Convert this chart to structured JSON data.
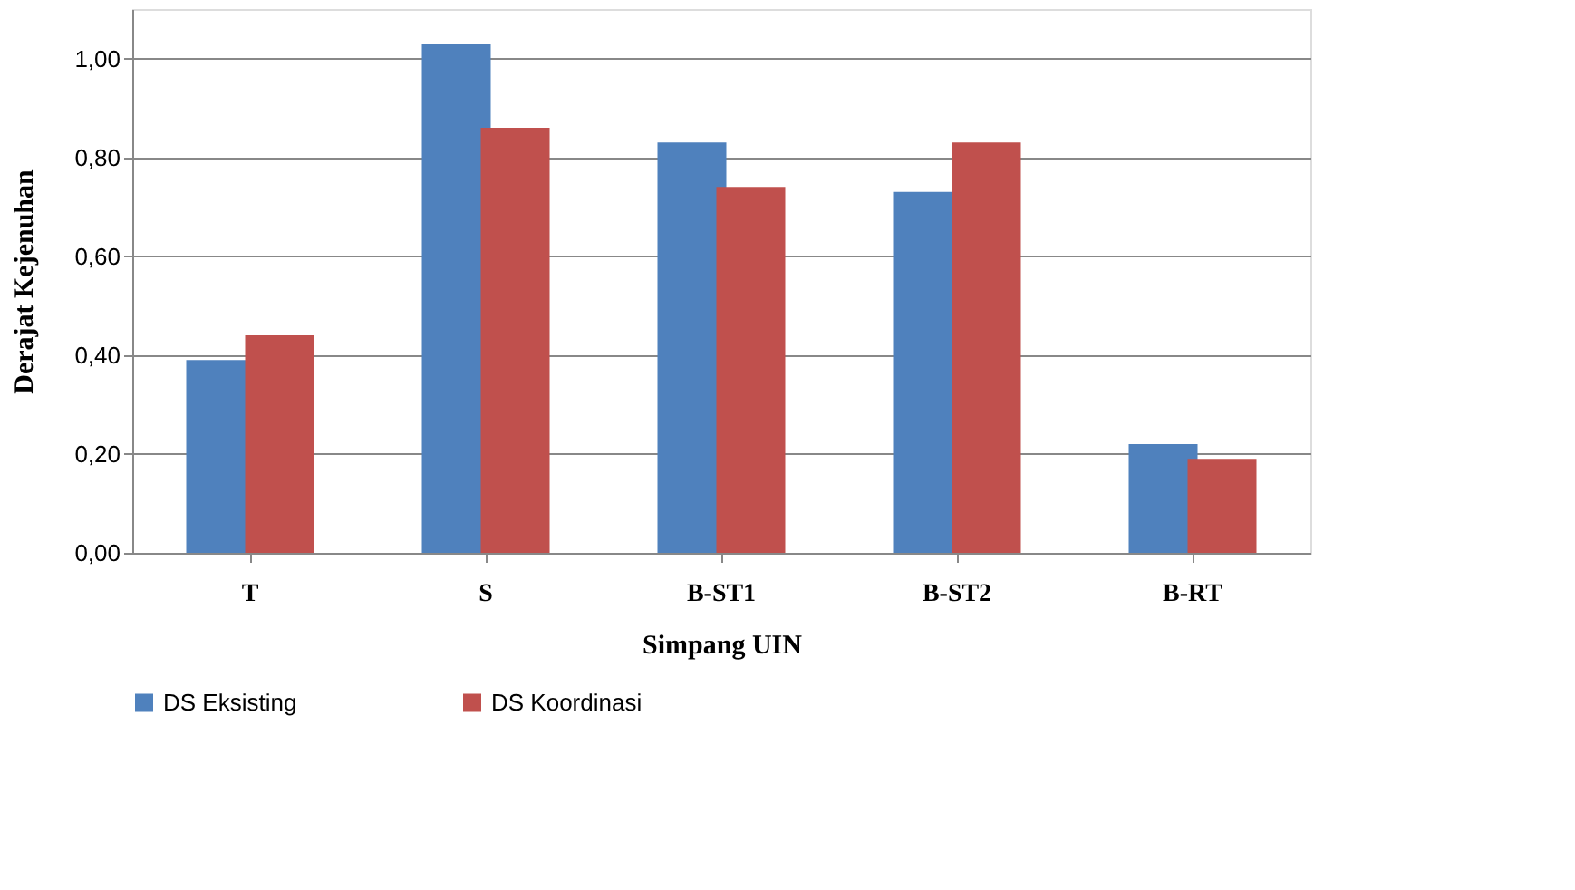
{
  "chart_data": {
    "type": "bar",
    "xlabel": "Simpang UIN",
    "ylabel": "Derajat Kejenuhan",
    "categories": [
      "T",
      "S",
      "B-ST1",
      "B-ST2",
      "B-RT"
    ],
    "series": [
      {
        "name": "DS Eksisting",
        "color": "#4f81bd",
        "values": [
          0.39,
          1.03,
          0.83,
          0.73,
          0.22
        ]
      },
      {
        "name": "DS Koordinasi",
        "color": "#c0504d",
        "values": [
          0.44,
          0.86,
          0.74,
          0.83,
          0.19
        ]
      }
    ],
    "ylim": [
      0,
      1.1
    ],
    "yticks": [
      {
        "value": 0,
        "label": "0,00"
      },
      {
        "value": 0.2,
        "label": "0,20"
      },
      {
        "value": 0.4,
        "label": "0,40"
      },
      {
        "value": 0.6,
        "label": "0,60"
      },
      {
        "value": 0.8,
        "label": "0,80"
      },
      {
        "value": 1.0,
        "label": "1,00"
      }
    ],
    "grid": "y",
    "legend": "bottom"
  }
}
